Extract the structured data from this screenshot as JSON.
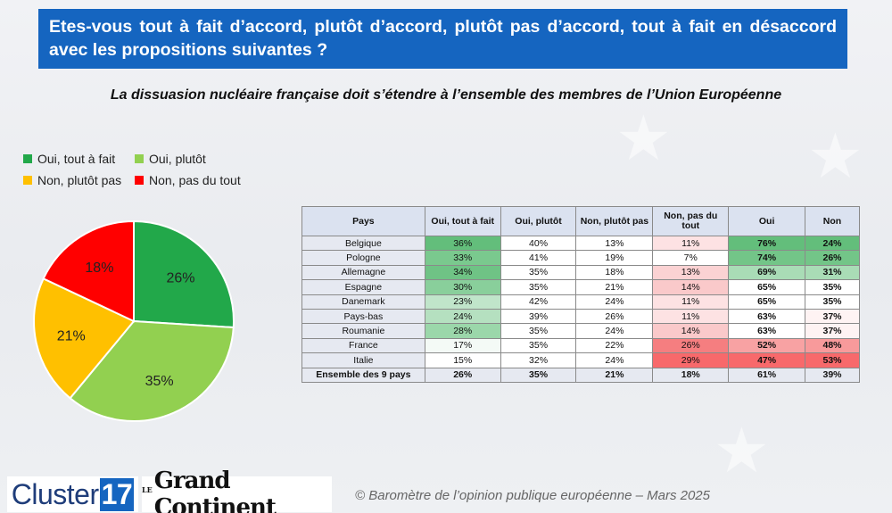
{
  "header": {
    "question": "Etes-vous tout à fait d’accord, plutôt d’accord, plutôt pas d’accord, tout à fait en désaccord avec les propositions suivantes ?"
  },
  "subtitle": "La dissuasion nucléaire française doit s’étendre à l’ensemble des membres de l’Union Européenne",
  "colors": {
    "oui_tout": "#22a84a",
    "oui_plutot": "#92d050",
    "non_plutot": "#ffc000",
    "non_pas": "#ff0000"
  },
  "chart_data": [
    {
      "type": "pie",
      "title": "",
      "legend_placement": "top-left",
      "series": [
        {
          "name": "Oui, tout à fait",
          "value": 26,
          "label": "26%",
          "color": "#22a84a"
        },
        {
          "name": "Oui, plutôt",
          "value": 35,
          "label": "35%",
          "color": "#92d050"
        },
        {
          "name": "Non, plutôt pas",
          "value": 21,
          "label": "21%",
          "color": "#ffc000"
        },
        {
          "name": "Non, pas du tout",
          "value": 18,
          "label": "18%",
          "color": "#ff0000"
        }
      ]
    },
    {
      "type": "table",
      "columns": [
        "Pays",
        "Oui, tout à fait",
        "Oui, plutôt",
        "Non, plutôt pas",
        "Non, pas du tout",
        "Oui",
        "Non"
      ],
      "rows": [
        {
          "pays": "Belgique",
          "oui_tout": "36%",
          "oui_plutot": "40%",
          "non_plutot": "13%",
          "non_pas": "11%",
          "oui": "76%",
          "non": "24%"
        },
        {
          "pays": "Pologne",
          "oui_tout": "33%",
          "oui_plutot": "41%",
          "non_plutot": "19%",
          "non_pas": "7%",
          "oui": "74%",
          "non": "26%"
        },
        {
          "pays": "Allemagne",
          "oui_tout": "34%",
          "oui_plutot": "35%",
          "non_plutot": "18%",
          "non_pas": "13%",
          "oui": "69%",
          "non": "31%"
        },
        {
          "pays": "Espagne",
          "oui_tout": "30%",
          "oui_plutot": "35%",
          "non_plutot": "21%",
          "non_pas": "14%",
          "oui": "65%",
          "non": "35%"
        },
        {
          "pays": "Danemark",
          "oui_tout": "23%",
          "oui_plutot": "42%",
          "non_plutot": "24%",
          "non_pas": "11%",
          "oui": "65%",
          "non": "35%"
        },
        {
          "pays": "Pays-bas",
          "oui_tout": "24%",
          "oui_plutot": "39%",
          "non_plutot": "26%",
          "non_pas": "11%",
          "oui": "63%",
          "non": "37%"
        },
        {
          "pays": "Roumanie",
          "oui_tout": "28%",
          "oui_plutot": "35%",
          "non_plutot": "24%",
          "non_pas": "14%",
          "oui": "63%",
          "non": "37%"
        },
        {
          "pays": "France",
          "oui_tout": "17%",
          "oui_plutot": "35%",
          "non_plutot": "22%",
          "non_pas": "26%",
          "oui": "52%",
          "non": "48%"
        },
        {
          "pays": "Italie",
          "oui_tout": "15%",
          "oui_plutot": "32%",
          "non_plutot": "24%",
          "non_pas": "29%",
          "oui": "47%",
          "non": "53%"
        }
      ],
      "total": {
        "pays": "Ensemble des 9 pays",
        "oui_tout": "26%",
        "oui_plutot": "35%",
        "non_plutot": "21%",
        "non_pas": "18%",
        "oui": "61%",
        "non": "39%"
      }
    }
  ],
  "table_colors": {
    "oui_tout": [
      "#63be7b",
      "#7ac98e",
      "#6fc385",
      "#89cf9b",
      "#c0e5ca",
      "#b5e0c0",
      "#9bd7aa",
      "#f4faf6",
      "#ffffff"
    ],
    "non_pas": [
      "#fde2e3",
      "#ffffff",
      "#fbd2d3",
      "#fac9ca",
      "#fde2e3",
      "#fde2e3",
      "#fac9ca",
      "#f57e80",
      "#f8696b"
    ],
    "oui": [
      "#63be7b",
      "#73c588",
      "#a9dcb6",
      "#ffffff",
      "#ffffff",
      "#ffffff",
      "#ffffff",
      "#f8a2a3",
      "#f8696b"
    ],
    "non": [
      "#63be7b",
      "#73c588",
      "#a9dcb6",
      "#ffffff",
      "#ffffff",
      "#fef3f3",
      "#fef3f3",
      "#f89a9b",
      "#f8696b"
    ]
  },
  "footer": {
    "logo1_text": "Cluster",
    "logo1_num": "17",
    "logo2_le": "LE",
    "logo2_text": "Grand Continent",
    "source": "© Baromètre de l’opinion publique européenne – Mars 2025"
  }
}
